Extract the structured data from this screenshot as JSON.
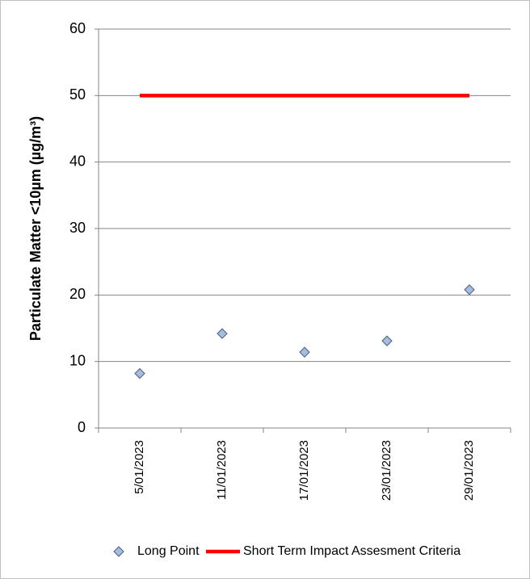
{
  "chart_data": {
    "type": "line",
    "y_label": "Particulate Matter <10µm (µg/m³)",
    "categories": [
      "5/01/2023",
      "11/01/2023",
      "17/01/2023",
      "23/01/2023",
      "29/01/2023"
    ],
    "series": [
      {
        "name": "Long Point",
        "color": "#a6bcdc",
        "mode": "markers",
        "values": [
          8.2,
          14.2,
          11.4,
          13.1,
          20.8
        ]
      },
      {
        "name": "Short Term Impact Assesment Criteria",
        "color": "#ff0000",
        "mode": "lines",
        "values": [
          50,
          50,
          50,
          50,
          50
        ]
      }
    ],
    "ylim": [
      0,
      60
    ],
    "yticks": [
      0,
      10,
      20,
      30,
      40,
      50,
      60
    ],
    "grid": true,
    "legend": "bottom"
  }
}
